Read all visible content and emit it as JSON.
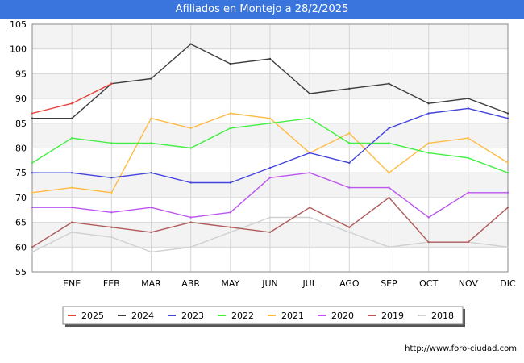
{
  "title": "Afiliados en Montejo a 28/2/2025",
  "footer_url": "http://www.foro-ciudad.com",
  "colors": {
    "title_bar": "#3a75dd",
    "band": "#f3f3f3",
    "grid": "#d6d6d6"
  },
  "chart_data": {
    "type": "line",
    "categories": [
      "",
      "ENE",
      "FEB",
      "MAR",
      "ABR",
      "MAY",
      "JUN",
      "JUL",
      "AGO",
      "SEP",
      "OCT",
      "NOV",
      "DIC"
    ],
    "ylim": [
      55,
      105
    ],
    "yticks": [
      55,
      60,
      65,
      70,
      75,
      80,
      85,
      90,
      95,
      100,
      105
    ],
    "grid": true,
    "legend_position": "bottom",
    "series": [
      {
        "name": "2025",
        "color": "#e8413c",
        "values": [
          87,
          89,
          93,
          null,
          null,
          null,
          null,
          null,
          null,
          null,
          null,
          null,
          null
        ]
      },
      {
        "name": "2024",
        "color": "#3d3d3d",
        "values": [
          86,
          86,
          93,
          94,
          101,
          97,
          98,
          91,
          92,
          93,
          89,
          90,
          87
        ]
      },
      {
        "name": "2023",
        "color": "#4444dd",
        "values": [
          75,
          75,
          74,
          75,
          73,
          73,
          76,
          79,
          77,
          84,
          87,
          88,
          86
        ]
      },
      {
        "name": "2022",
        "color": "#44ee44",
        "values": [
          77,
          82,
          81,
          81,
          80,
          84,
          85,
          86,
          81,
          81,
          79,
          78,
          75
        ]
      },
      {
        "name": "2021",
        "color": "#ffbb44",
        "values": [
          71,
          72,
          71,
          86,
          84,
          87,
          86,
          79,
          83,
          75,
          81,
          82,
          77
        ]
      },
      {
        "name": "2020",
        "color": "#bb55ee",
        "values": [
          68,
          68,
          67,
          68,
          66,
          67,
          74,
          75,
          72,
          72,
          66,
          71,
          71
        ]
      },
      {
        "name": "2019",
        "color": "#b05a5a",
        "values": [
          60,
          65,
          64,
          63,
          65,
          64,
          63,
          68,
          64,
          70,
          61,
          61,
          68
        ]
      },
      {
        "name": "2018",
        "color": "#d0d0d0",
        "values": [
          59,
          63,
          62,
          59,
          60,
          63,
          66,
          66,
          63,
          60,
          61,
          61,
          60
        ]
      }
    ]
  }
}
